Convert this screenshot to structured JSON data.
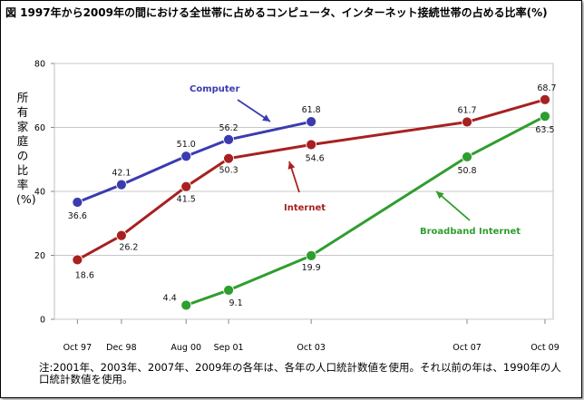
{
  "chart_data": {
    "type": "line",
    "title": "図 1997年から2009年の間における全世帯に占めるコンピュータ、インターネット接続世帯の占める比率(%)",
    "ylabel": "所有家庭の比率(%)",
    "xlabel": "",
    "ylim": [
      0,
      80
    ],
    "yticks": [
      0,
      20,
      40,
      60,
      80
    ],
    "grid": true,
    "categories": [
      "Oct 97",
      "Dec 98",
      "Aug 00",
      "Sep 01",
      "Oct 03",
      "Oct 07",
      "Oct 09"
    ],
    "x_positions": [
      1997.79,
      1998.92,
      2000.58,
      2001.67,
      2003.79,
      2007.79,
      2009.79
    ],
    "series": [
      {
        "name": "Computer",
        "color": "#3b3bb0",
        "points": [
          [
            1997.79,
            36.6
          ],
          [
            1998.92,
            42.1
          ],
          [
            2000.58,
            51.0
          ],
          [
            2001.67,
            56.2
          ],
          [
            2003.79,
            61.8
          ]
        ],
        "labels": [
          "36.6",
          "42.1",
          "51.0",
          "56.2",
          "61.8"
        ]
      },
      {
        "name": "Internet",
        "color": "#a82020",
        "points": [
          [
            1997.79,
            18.6
          ],
          [
            1998.92,
            26.2
          ],
          [
            2000.58,
            41.5
          ],
          [
            2001.67,
            50.3
          ],
          [
            2003.79,
            54.6
          ],
          [
            2007.79,
            61.7
          ],
          [
            2009.79,
            68.7
          ]
        ],
        "labels": [
          "18.6",
          "26.2",
          "41.5",
          "50.3",
          "54.6",
          "61.7",
          "68.7"
        ]
      },
      {
        "name": "Broadband Internet",
        "color": "#2e9e2e",
        "points": [
          [
            2000.58,
            4.4
          ],
          [
            2001.67,
            9.1
          ],
          [
            2003.79,
            19.9
          ],
          [
            2007.79,
            50.8
          ],
          [
            2009.79,
            63.5
          ]
        ],
        "labels": [
          "4.4",
          "9.1",
          "19.9",
          "50.8",
          "63.5"
        ]
      }
    ]
  },
  "footnote": "注:2001年、2003年、2007年、2009年の各年は、各年の人口統計数値を使用。それ以前の年は、1990年の人口統計数値を使用。"
}
